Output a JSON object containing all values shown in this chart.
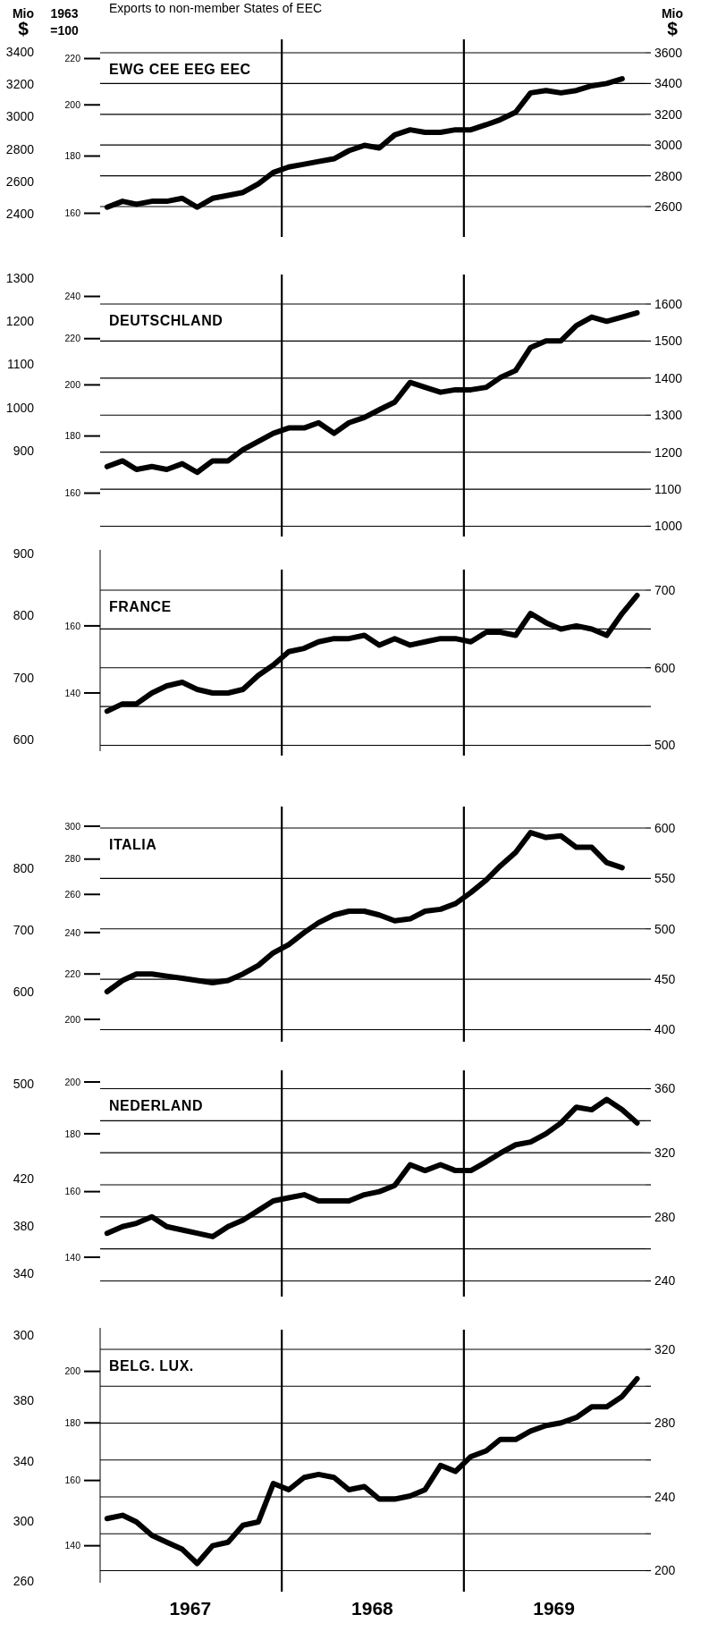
{
  "chart_data": [
    {
      "type": "line",
      "title": "EWG CEE EEG EEC",
      "annotations": [
        "Exports to non-member States of EEC"
      ],
      "y3label": "Mio $",
      "ylabel": "1963 =100",
      "y2label": "Mio $",
      "log": "y",
      "grid": "y2",
      "tick_labels": "y",
      "color": "#000000",
      "x": [
        "1967-01-15",
        "1967-02-15",
        "1967-03-15",
        "1967-04-15",
        "1967-05-15",
        "1967-06-15",
        "1967-07-15",
        "1967-08-15",
        "1967-09-15",
        "1967-10-15",
        "1967-11-15",
        "1967-12-15",
        "1968-01-15",
        "1968-02-15",
        "1968-03-15",
        "1968-04-15",
        "1968-05-15",
        "1968-06-15",
        "1968-07-15",
        "1968-08-15",
        "1968-09-15",
        "1968-10-15",
        "1968-11-15",
        "1968-12-15",
        "1969-01-15",
        "1969-02-15",
        "1969-03-15",
        "1969-04-15",
        "1969-05-15",
        "1969-06-15",
        "1969-07-15",
        "1969-08-15",
        "1969-09-15",
        "1969-10-15",
        "1969-11-15"
      ],
      "values": [
        162,
        164,
        163,
        164,
        164,
        165,
        162,
        165,
        166,
        167,
        170,
        174,
        176,
        177,
        178,
        179,
        182,
        184,
        183,
        188,
        190,
        189,
        189,
        190,
        190,
        192,
        194,
        197,
        205,
        206,
        205,
        206,
        208,
        209,
        211
      ],
      "xlim": [
        "1967-01-01",
        "1970-01-01"
      ],
      "ylim": [
        160,
        220
      ],
      "yticks": [
        160,
        180,
        200,
        220
      ],
      "y2lim": [
        2600,
        3600
      ],
      "y2ticks": [
        2600,
        2800,
        3000,
        3200,
        3400,
        3600
      ],
      "y3lim": [
        2400,
        3400
      ],
      "y3ticks": [
        2400,
        2600,
        2800,
        3000,
        3200,
        3400
      ],
      "ref_lines": [
        {
          "axis": "x",
          "value": "1968-01-01"
        },
        {
          "axis": "x",
          "value": "1969-01-01"
        }
      ]
    },
    {
      "type": "line",
      "title": "DEUTSCHLAND",
      "log": "y",
      "grid": "y2",
      "tick_labels": "y",
      "color": "#000000",
      "x": [
        "1967-01-15",
        "1967-02-15",
        "1967-03-15",
        "1967-04-15",
        "1967-05-15",
        "1967-06-15",
        "1967-07-15",
        "1967-08-15",
        "1967-09-15",
        "1967-10-15",
        "1967-11-15",
        "1967-12-15",
        "1968-01-15",
        "1968-02-15",
        "1968-03-15",
        "1968-04-15",
        "1968-05-15",
        "1968-06-15",
        "1968-07-15",
        "1968-08-15",
        "1968-09-15",
        "1968-10-15",
        "1968-11-15",
        "1968-12-15",
        "1969-01-15",
        "1969-02-15",
        "1969-03-15",
        "1969-04-15",
        "1969-05-15",
        "1969-06-15",
        "1969-07-15",
        "1969-08-15",
        "1969-09-15",
        "1969-10-15",
        "1969-11-15",
        "1969-12-15"
      ],
      "values": [
        169,
        171,
        168,
        169,
        168,
        170,
        167,
        171,
        171,
        175,
        178,
        181,
        183,
        183,
        185,
        181,
        185,
        187,
        190,
        193,
        201,
        199,
        197,
        198,
        198,
        199,
        203,
        206,
        216,
        219,
        219,
        226,
        230,
        228,
        230,
        232
      ],
      "xlim": [
        "1967-01-01",
        "1970-01-01"
      ],
      "ylim": [
        160,
        240
      ],
      "yticks": [
        160,
        180,
        200,
        220,
        240
      ],
      "y2lim": [
        1000,
        1600
      ],
      "y2ticks": [
        1000,
        1100,
        1200,
        1300,
        1400,
        1500,
        1600
      ],
      "y3lim": [
        900,
        1300
      ],
      "y3ticks": [
        900,
        1000,
        1100,
        1200,
        1300
      ],
      "ref_lines": [
        {
          "axis": "x",
          "value": "1968-01-01"
        },
        {
          "axis": "x",
          "value": "1969-01-01"
        }
      ]
    },
    {
      "type": "line",
      "title": "FRANCE",
      "log": "y",
      "grid": "y2",
      "tick_labels": "y",
      "color": "#000000",
      "x": [
        "1967-01-15",
        "1967-02-15",
        "1967-03-15",
        "1967-04-15",
        "1967-05-15",
        "1967-06-15",
        "1967-07-15",
        "1967-08-15",
        "1967-09-15",
        "1967-10-15",
        "1967-11-15",
        "1967-12-15",
        "1968-01-15",
        "1968-02-15",
        "1968-03-15",
        "1968-04-15",
        "1968-05-15",
        "1968-06-15",
        "1968-07-15",
        "1968-08-15",
        "1968-09-15",
        "1968-10-15",
        "1968-11-15",
        "1968-12-15",
        "1969-01-15",
        "1969-02-15",
        "1969-03-15",
        "1969-04-15",
        "1969-05-15",
        "1969-06-15",
        "1969-07-15",
        "1969-08-15",
        "1969-09-15",
        "1969-10-15",
        "1969-11-15",
        "1969-12-15"
      ],
      "values": [
        135,
        137,
        137,
        140,
        142,
        143,
        141,
        140,
        140,
        141,
        145,
        148,
        152,
        153,
        155,
        156,
        156,
        157,
        154,
        156,
        154,
        155,
        156,
        156,
        155,
        158,
        158,
        157,
        164,
        161,
        159,
        160,
        159,
        157,
        164,
        170
      ],
      "xlim": [
        "1967-01-01",
        "1970-01-01"
      ],
      "ylim": [
        124.7,
        186.1
      ],
      "yticks": [
        140,
        160
      ],
      "y2lim": [
        500,
        700
      ],
      "y2ticks": [
        500,
        {
          "value": 550,
          "label": null
        },
        600,
        {
          "value": 650,
          "label": null
        },
        700
      ],
      "y3lim": [
        600,
        900
      ],
      "y3ticks": [
        600,
        700,
        800,
        900
      ],
      "ref_lines": [
        {
          "axis": "x",
          "value": "1968-01-01"
        },
        {
          "axis": "x",
          "value": "1969-01-01"
        }
      ]
    },
    {
      "type": "line",
      "title": "ITALIA",
      "log": "y",
      "grid": "y2",
      "tick_labels": "y",
      "color": "#000000",
      "x": [
        "1967-01-15",
        "1967-02-15",
        "1967-03-15",
        "1967-04-15",
        "1967-05-15",
        "1967-06-15",
        "1967-07-15",
        "1967-08-15",
        "1967-09-15",
        "1967-10-15",
        "1967-11-15",
        "1967-12-15",
        "1968-01-15",
        "1968-02-15",
        "1968-03-15",
        "1968-04-15",
        "1968-05-15",
        "1968-06-15",
        "1968-07-15",
        "1968-08-15",
        "1968-09-15",
        "1968-10-15",
        "1968-11-15",
        "1968-12-15",
        "1969-01-15",
        "1969-02-15",
        "1969-03-15",
        "1969-04-15",
        "1969-05-15",
        "1969-06-15",
        "1969-07-15",
        "1969-08-15",
        "1969-09-15",
        "1969-10-15",
        "1969-11-15"
      ],
      "values": [
        212,
        217,
        220,
        220,
        219,
        218,
        217,
        216,
        217,
        220,
        224,
        230,
        234,
        240,
        245,
        249,
        251,
        251,
        249,
        246,
        247,
        251,
        252,
        255,
        261,
        268,
        276,
        284,
        296,
        293,
        294,
        287,
        287,
        278,
        275
      ],
      "xlim": [
        "1967-01-01",
        "1970-01-01"
      ],
      "ylim": [
        200,
        300
      ],
      "yticks": [
        200,
        220,
        240,
        260,
        280,
        300
      ],
      "y2lim": [
        400,
        600
      ],
      "y2ticks": [
        400,
        450,
        500,
        550,
        600
      ],
      "y3lim": [
        600,
        800
      ],
      "y3ticks": [
        600,
        700,
        800
      ],
      "ref_lines": [
        {
          "axis": "x",
          "value": "1968-01-01"
        },
        {
          "axis": "x",
          "value": "1969-01-01"
        }
      ]
    },
    {
      "type": "line",
      "title": "NEDERLAND",
      "log": "y",
      "grid": "y2",
      "tick_labels": "y",
      "color": "#000000",
      "x": [
        "1967-01-15",
        "1967-02-15",
        "1967-03-15",
        "1967-04-15",
        "1967-05-15",
        "1967-06-15",
        "1967-07-15",
        "1967-08-15",
        "1967-09-15",
        "1967-10-15",
        "1967-11-15",
        "1967-12-15",
        "1968-01-15",
        "1968-02-15",
        "1968-03-15",
        "1968-04-15",
        "1968-05-15",
        "1968-06-15",
        "1968-07-15",
        "1968-08-15",
        "1968-09-15",
        "1968-10-15",
        "1968-11-15",
        "1968-12-15",
        "1969-01-15",
        "1969-02-15",
        "1969-03-15",
        "1969-04-15",
        "1969-05-15",
        "1969-06-15",
        "1969-07-15",
        "1969-08-15",
        "1969-09-15",
        "1969-10-15",
        "1969-11-15",
        "1969-12-15"
      ],
      "values": [
        147,
        149,
        150,
        152,
        149,
        148,
        147,
        146,
        149,
        151,
        154,
        157,
        158,
        159,
        157,
        157,
        157,
        159,
        160,
        162,
        169,
        167,
        169,
        167,
        167,
        170,
        173,
        176,
        177,
        180,
        184,
        190,
        189,
        193,
        189,
        184
      ],
      "xlim": [
        "1967-01-01",
        "1970-01-01"
      ],
      "ylim": [
        140,
        200
      ],
      "yticks": [
        140,
        160,
        180,
        200
      ],
      "y2lim": [
        240,
        360
      ],
      "y2ticks": [
        240,
        {
          "value": 260,
          "label": null
        },
        280,
        {
          "value": 300,
          "label": null
        },
        320,
        {
          "value": 340,
          "label": null
        },
        360
      ],
      "y3lim": [
        340,
        500
      ],
      "y3ticks": [
        340,
        380,
        420,
        500
      ],
      "ref_lines": [
        {
          "axis": "x",
          "value": "1968-01-01"
        },
        {
          "axis": "x",
          "value": "1969-01-01"
        }
      ]
    },
    {
      "type": "line",
      "title": "BELG. LUX.",
      "log": "y",
      "grid": "y2",
      "color": "#000000",
      "x": [
        "1967-01-15",
        "1967-02-15",
        "1967-03-15",
        "1967-04-15",
        "1967-05-15",
        "1967-06-15",
        "1967-07-15",
        "1967-08-15",
        "1967-09-15",
        "1967-10-15",
        "1967-11-15",
        "1967-12-15",
        "1968-01-15",
        "1968-02-15",
        "1968-03-15",
        "1968-04-15",
        "1968-05-15",
        "1968-06-15",
        "1968-07-15",
        "1968-08-15",
        "1968-09-15",
        "1968-10-15",
        "1968-11-15",
        "1968-12-15",
        "1969-01-15",
        "1969-02-15",
        "1969-03-15",
        "1969-04-15",
        "1969-05-15",
        "1969-06-15",
        "1969-07-15",
        "1969-08-15",
        "1969-09-15",
        "1969-10-15",
        "1969-11-15",
        "1969-12-15"
      ],
      "values": [
        148,
        149,
        147,
        143,
        141,
        139,
        135,
        140,
        141,
        146,
        147,
        159,
        157,
        161,
        162,
        161,
        157,
        158,
        154,
        154,
        155,
        157,
        165,
        163,
        168,
        170,
        174,
        174,
        177,
        179,
        180,
        182,
        186,
        186,
        190,
        197
      ],
      "xlim": [
        "1967-01-01",
        "1970-01-01"
      ],
      "xticks": [
        {
          "value": "1967-07-01",
          "label": "1967"
        },
        {
          "value": "1968-07-01",
          "label": "1968"
        },
        {
          "value": "1969-07-01",
          "label": "1969"
        }
      ],
      "ylim": [
        129.8,
        218.6
      ],
      "yticks": [
        140,
        160,
        180,
        200
      ],
      "y2lim": [
        200,
        320
      ],
      "y2ticks": [
        200,
        {
          "value": 220,
          "label": null
        },
        240,
        {
          "value": 260,
          "label": null
        },
        280,
        {
          "value": 300,
          "label": null
        },
        320
      ],
      "y3lim": [
        260,
        380
      ],
      "y3ticks": [
        260,
        300,
        340,
        380
      ],
      "annotations": [
        "300"
      ],
      "ref_lines": [
        {
          "axis": "x",
          "value": "1968-01-01"
        },
        {
          "axis": "x",
          "value": "1969-01-01"
        }
      ]
    }
  ]
}
